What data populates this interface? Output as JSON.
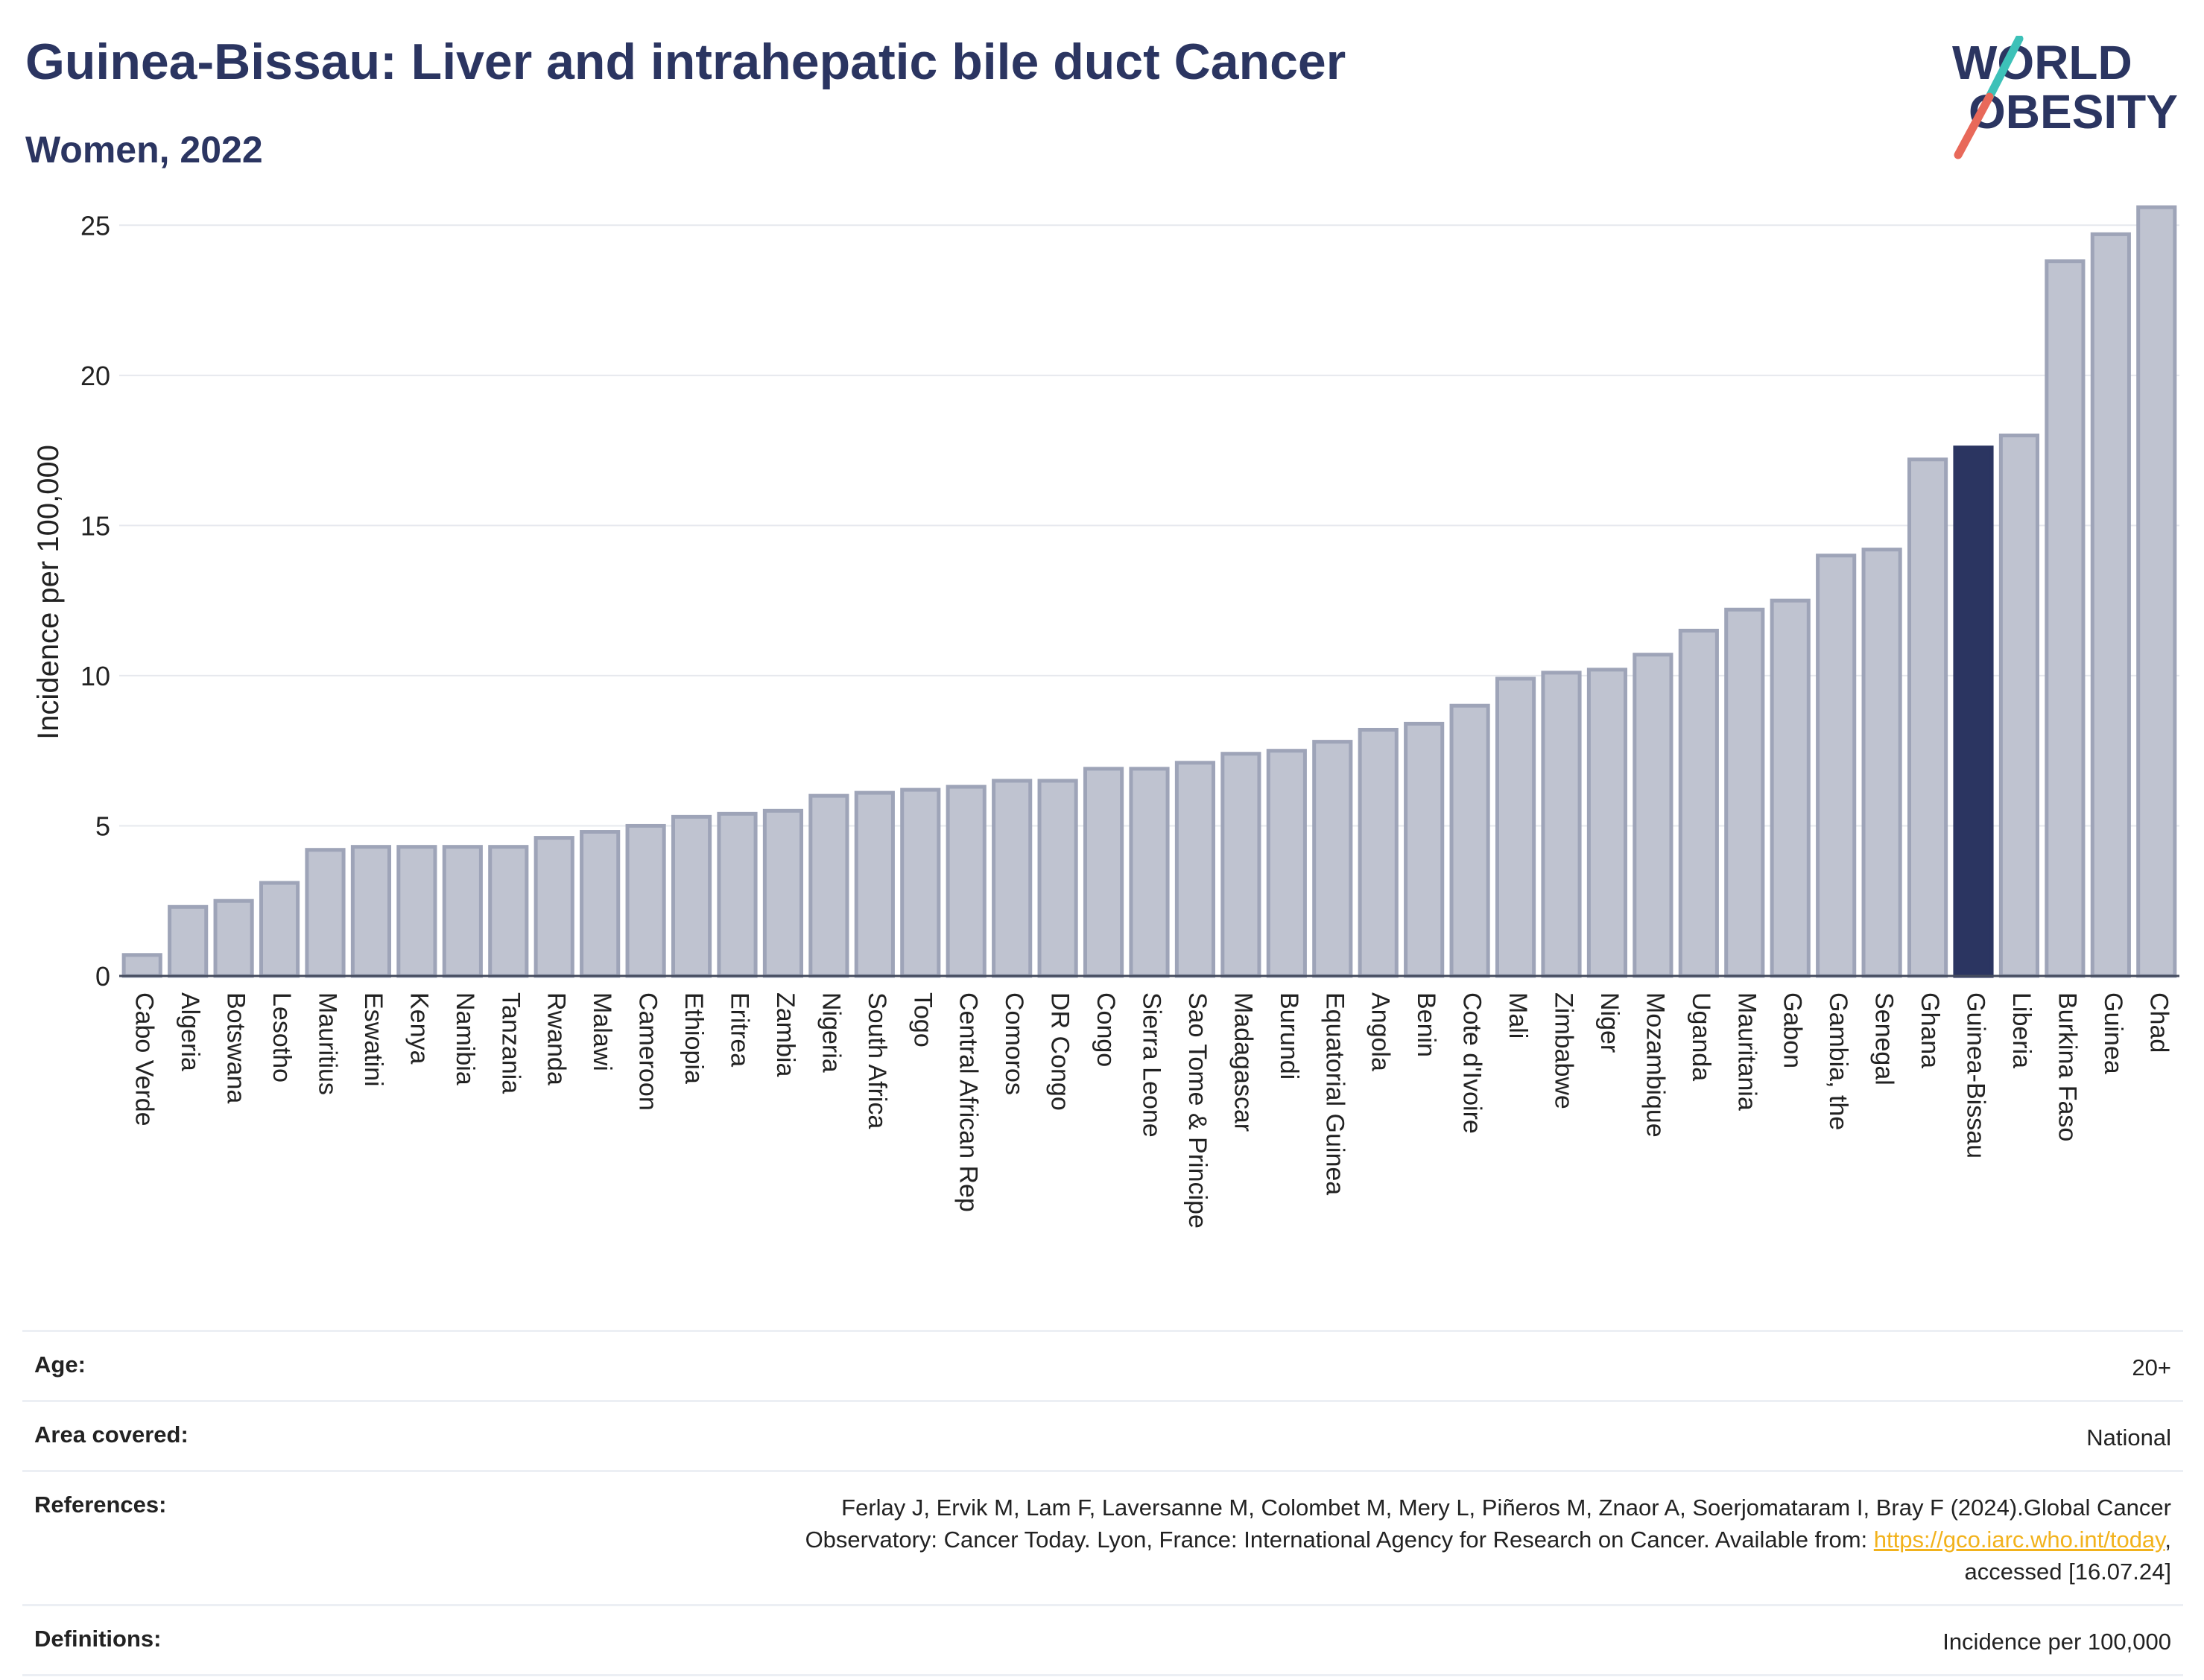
{
  "header": {
    "title": "Guinea-Bissau: Liver and intrahepatic bile duct Cancer",
    "subtitle": "Women, 2022"
  },
  "logo": {
    "line1": "WORLD",
    "line2": "OBESITY",
    "slash_colors": [
      "#3dc1b8",
      "#e8695a"
    ]
  },
  "colors": {
    "highlight": "#2b3561",
    "bar_fill": "#bfc3d0",
    "bar_stroke": "#9ea4b8",
    "grid": "#e6e8ee",
    "link": "#f2b21c"
  },
  "chart_data": {
    "type": "bar",
    "ylabel": "Incidence per 100,000",
    "ylim": [
      0,
      26
    ],
    "yticks": [
      0,
      5,
      10,
      15,
      20,
      25
    ],
    "grid": true,
    "highlight_category": "Guinea-Bissau",
    "categories": [
      "Cabo Verde",
      "Algeria",
      "Botswana",
      "Lesotho",
      "Mauritius",
      "Eswatini",
      "Kenya",
      "Namibia",
      "Tanzania",
      "Rwanda",
      "Malawi",
      "Cameroon",
      "Ethiopia",
      "Eritrea",
      "Zambia",
      "Nigeria",
      "South Africa",
      "Togo",
      "Central African Rep",
      "Comoros",
      "DR Congo",
      "Congo",
      "Sierra Leone",
      "Sao Tome & Principe",
      "Madagascar",
      "Burundi",
      "Equatorial Guinea",
      "Angola",
      "Benin",
      "Cote d'Ivoire",
      "Mali",
      "Zimbabwe",
      "Niger",
      "Mozambique",
      "Uganda",
      "Mauritania",
      "Gabon",
      "Gambia, the",
      "Senegal",
      "Ghana",
      "Guinea-Bissau",
      "Liberia",
      "Burkina Faso",
      "Guinea",
      "Chad"
    ],
    "values": [
      0.7,
      2.3,
      2.5,
      3.1,
      4.2,
      4.3,
      4.3,
      4.3,
      4.3,
      4.6,
      4.8,
      5.0,
      5.3,
      5.4,
      5.5,
      6.0,
      6.1,
      6.2,
      6.3,
      6.5,
      6.5,
      6.9,
      6.9,
      7.1,
      7.4,
      7.5,
      7.8,
      8.2,
      8.4,
      9.0,
      9.9,
      10.1,
      10.2,
      10.7,
      11.5,
      12.2,
      12.5,
      14.0,
      14.2,
      17.2,
      17.6,
      18.0,
      23.8,
      24.7,
      25.6
    ]
  },
  "meta": {
    "age_label": "Age:",
    "age_value": "20+",
    "area_label": "Area covered:",
    "area_value": "National",
    "references_label": "References:",
    "references_line1": "Ferlay J, Ervik M, Lam F, Laversanne M, Colombet M, Mery L, Piñeros M, Znaor A, Soerjomataram I, Bray F (2024).Global Cancer",
    "references_line2_pre": "Observatory: Cancer Today. Lyon, France: International Agency for Research on Cancer. Available from: ",
    "references_link": "https://gco.iarc.who.int/today",
    "references_line2_post": ",",
    "references_line3": "accessed [16.07.24]",
    "definitions_label": "Definitions:",
    "definitions_value": "Incidence per 100,000"
  }
}
